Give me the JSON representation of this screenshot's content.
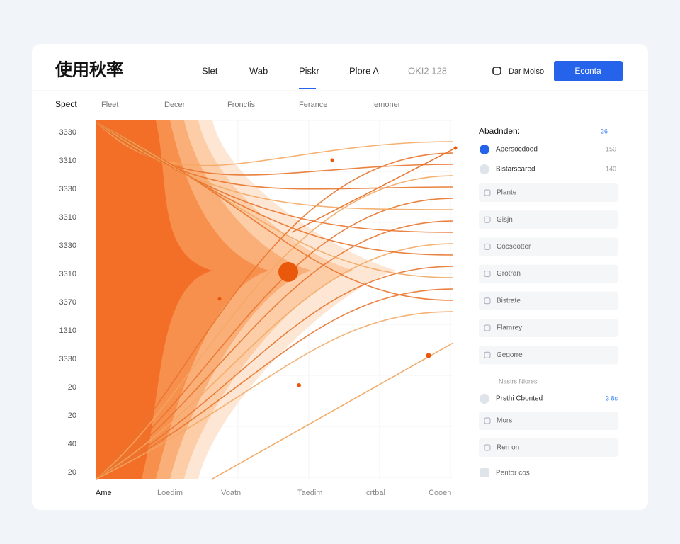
{
  "header": {
    "title": "使用秋率",
    "nav": [
      "Slet",
      "Wab",
      "Piskr",
      "Plore A",
      "OKI2 128"
    ],
    "user": "Dar Moiso",
    "button": "Econta"
  },
  "table": {
    "columns": [
      "Spect",
      "Fleet",
      "Decer",
      "Fronctis",
      "Ferance",
      "Iemoner"
    ],
    "row_labels": [
      "3330",
      "3310",
      "3330",
      "3310",
      "3330",
      "3310",
      "3370",
      "1310",
      "3330",
      "20",
      "20",
      "40",
      "20"
    ],
    "footer": [
      "Ame",
      "Loedim",
      "Voatn",
      "Taedim",
      "Icrtbal",
      "Cooen"
    ]
  },
  "panel": {
    "title": "Abadnden:",
    "title_count": "26",
    "checks": [
      {
        "label": "Apersocdoed",
        "value": "150"
      },
      {
        "label": "Bistarscared",
        "value": "140"
      }
    ],
    "items": [
      "Plante",
      "Gisjn",
      "Cocsootter",
      "Grotran",
      "Bistrate",
      "Flamrey",
      "Gegorre"
    ],
    "section": "Nastrs Nlores",
    "section_item": {
      "label": "Prsthi Cbonted",
      "value": "3 8s"
    },
    "items2": [
      "Mors",
      "Ren on"
    ],
    "footer": "Peritor cos"
  }
}
